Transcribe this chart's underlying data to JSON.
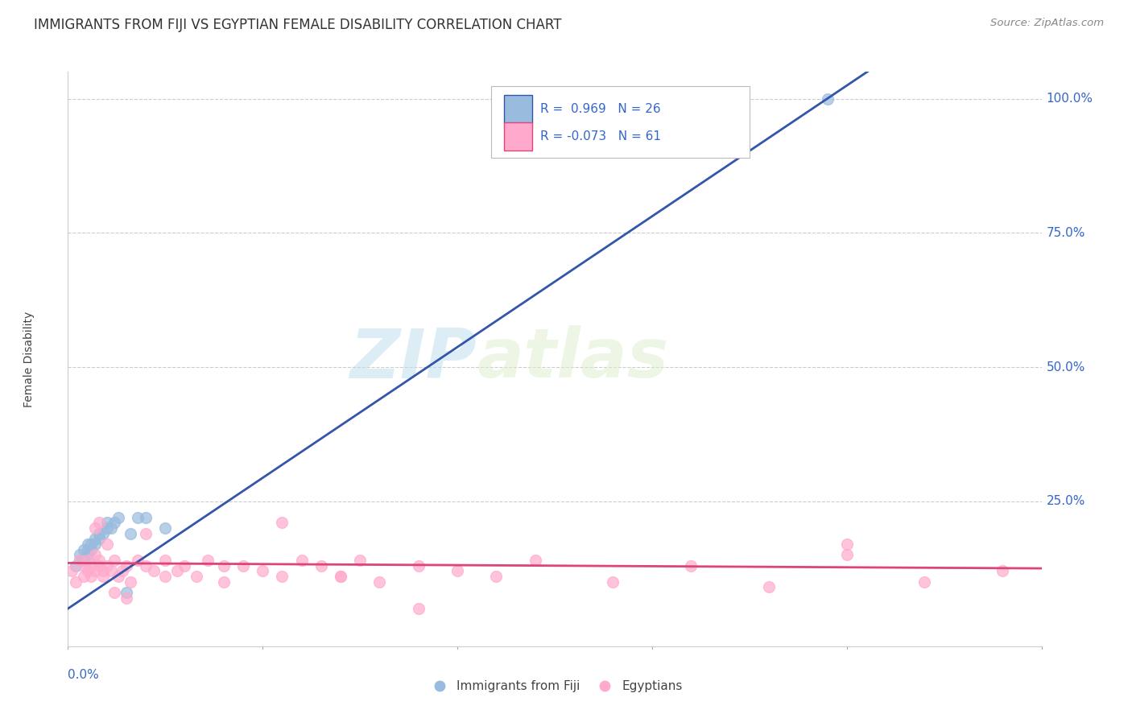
{
  "title": "IMMIGRANTS FROM FIJI VS EGYPTIAN FEMALE DISABILITY CORRELATION CHART",
  "source": "Source: ZipAtlas.com",
  "ylabel": "Female Disability",
  "ytick_labels": [
    "25.0%",
    "50.0%",
    "75.0%",
    "100.0%"
  ],
  "ytick_positions": [
    0.25,
    0.5,
    0.75,
    1.0
  ],
  "xlim": [
    0.0,
    0.25
  ],
  "ylim": [
    -0.02,
    1.05
  ],
  "legend_label1": "Immigrants from Fiji",
  "legend_label2": "Egyptians",
  "R1_text": "R =  0.969   N = 26",
  "R2_text": "R = -0.073   N = 61",
  "color_blue": "#99BBDD",
  "color_pink": "#FFAACC",
  "color_line_blue": "#3355AA",
  "color_line_pink": "#DD4477",
  "color_axis_labels": "#3366CC",
  "fiji_x": [
    0.002,
    0.003,
    0.003,
    0.004,
    0.004,
    0.005,
    0.005,
    0.005,
    0.006,
    0.006,
    0.007,
    0.007,
    0.008,
    0.008,
    0.009,
    0.01,
    0.01,
    0.011,
    0.012,
    0.013,
    0.015,
    0.016,
    0.018,
    0.02,
    0.025,
    0.195
  ],
  "fiji_y": [
    0.13,
    0.14,
    0.15,
    0.14,
    0.16,
    0.15,
    0.16,
    0.17,
    0.16,
    0.17,
    0.17,
    0.18,
    0.18,
    0.19,
    0.19,
    0.2,
    0.21,
    0.2,
    0.21,
    0.22,
    0.08,
    0.19,
    0.22,
    0.22,
    0.2,
    1.0
  ],
  "egypt_x": [
    0.001,
    0.002,
    0.003,
    0.004,
    0.004,
    0.005,
    0.005,
    0.006,
    0.006,
    0.007,
    0.007,
    0.008,
    0.008,
    0.009,
    0.009,
    0.01,
    0.011,
    0.012,
    0.013,
    0.014,
    0.015,
    0.016,
    0.018,
    0.02,
    0.022,
    0.025,
    0.028,
    0.03,
    0.033,
    0.036,
    0.04,
    0.045,
    0.05,
    0.055,
    0.06,
    0.065,
    0.07,
    0.075,
    0.08,
    0.09,
    0.1,
    0.11,
    0.12,
    0.14,
    0.16,
    0.18,
    0.2,
    0.22,
    0.24,
    0.007,
    0.008,
    0.01,
    0.012,
    0.015,
    0.02,
    0.025,
    0.04,
    0.055,
    0.07,
    0.09,
    0.2
  ],
  "egypt_y": [
    0.12,
    0.1,
    0.14,
    0.11,
    0.13,
    0.14,
    0.12,
    0.13,
    0.11,
    0.15,
    0.12,
    0.14,
    0.13,
    0.12,
    0.11,
    0.13,
    0.12,
    0.14,
    0.11,
    0.12,
    0.13,
    0.1,
    0.14,
    0.13,
    0.12,
    0.11,
    0.12,
    0.13,
    0.11,
    0.14,
    0.1,
    0.13,
    0.12,
    0.11,
    0.14,
    0.13,
    0.11,
    0.14,
    0.1,
    0.13,
    0.12,
    0.11,
    0.14,
    0.1,
    0.13,
    0.09,
    0.15,
    0.1,
    0.12,
    0.2,
    0.21,
    0.17,
    0.08,
    0.07,
    0.19,
    0.14,
    0.13,
    0.21,
    0.11,
    0.05,
    0.17
  ],
  "watermark_zip": "ZIP",
  "watermark_atlas": "atlas",
  "background_color": "#FFFFFF",
  "grid_color": "#CCCCCC"
}
